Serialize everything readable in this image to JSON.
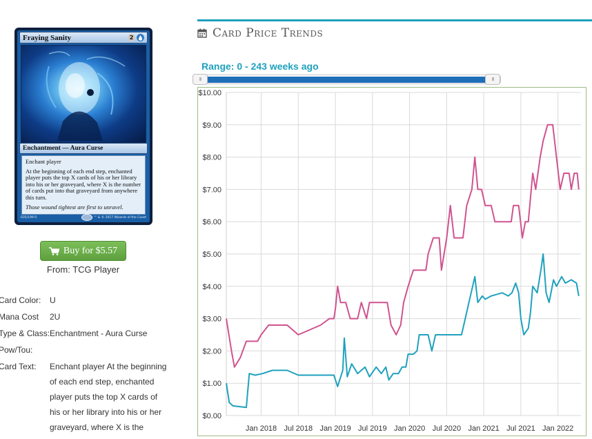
{
  "card": {
    "name": "Fraying Sanity",
    "mana_generic": "2",
    "mana_colored": "U",
    "type_line": "Enchantment — Aura Curse",
    "rules_line1": "Enchant player",
    "rules_line2": "At the beginning of each end step, enchanted player puts the top X cards of his or her library into his or her graveyard, where X is the number of cards put into that graveyard from anywhere this turn.",
    "flavor": "Those wound tightest are first to unravel.",
    "collector": "035/199 R",
    "copyright": "™ & © 2017 Wizards of the Coast"
  },
  "buy": {
    "label": "Buy for $5.57",
    "from": "From: TCG Player"
  },
  "details": {
    "color_label": "Card Color:",
    "color_value": "U",
    "mana_label": "Mana Cost",
    "mana_value": "2U",
    "type_label": "Type & Class:",
    "type_value": "Enchantment - Aura Curse",
    "powtou_label": "Pow/Tou:",
    "text_label": "Card Text:",
    "text_lines": [
      "Enchant player At the beginning",
      "of each end step, enchanted",
      "player puts the top X cards of",
      "his or her library into his or her",
      "graveyard, where X is the"
    ]
  },
  "header": {
    "title": "Card Price Trends",
    "icon": "calendar-icon",
    "range_label": "Range: 0 - 243 weeks ago"
  },
  "slider": {
    "min_weeks": 0,
    "max_weeks": 243,
    "left_handle": "III",
    "right_handle": "III"
  },
  "colors": {
    "accent": "#1ea1bd",
    "button_green": "#6aae49",
    "series_pink": "#d0528f",
    "series_teal": "#1ea1bd"
  },
  "chart_data": {
    "type": "line",
    "ylim": [
      0,
      10
    ],
    "y_ticks": [
      "$0.00",
      "$1.00",
      "$2.00",
      "$3.00",
      "$4.00",
      "$5.00",
      "$6.00",
      "$7.00",
      "$8.00",
      "$9.00",
      "$10.00"
    ],
    "x_ticks": [
      "Jan 2018",
      "Jul 2018",
      "Jan 2019",
      "Jul 2019",
      "Jan 2020",
      "Jul 2020",
      "Jan 2021",
      "Jul 2021",
      "Jan 2022"
    ],
    "grid": true,
    "series": [
      {
        "color": "#d0528f",
        "points": [
          [
            2017.53,
            3.0
          ],
          [
            2017.6,
            2.0
          ],
          [
            2017.64,
            1.5
          ],
          [
            2017.72,
            1.8
          ],
          [
            2017.8,
            2.3
          ],
          [
            2017.95,
            2.3
          ],
          [
            2018.0,
            2.5
          ],
          [
            2018.1,
            2.8
          ],
          [
            2018.35,
            2.8
          ],
          [
            2018.5,
            2.5
          ],
          [
            2018.8,
            2.8
          ],
          [
            2018.92,
            3.0
          ],
          [
            2018.98,
            3.0
          ],
          [
            2019.0,
            3.3
          ],
          [
            2019.03,
            4.0
          ],
          [
            2019.07,
            3.5
          ],
          [
            2019.14,
            3.5
          ],
          [
            2019.2,
            3.0
          ],
          [
            2019.3,
            3.0
          ],
          [
            2019.35,
            3.5
          ],
          [
            2019.42,
            3.0
          ],
          [
            2019.46,
            3.5
          ],
          [
            2019.7,
            3.5
          ],
          [
            2019.75,
            2.8
          ],
          [
            2019.82,
            2.5
          ],
          [
            2019.88,
            2.8
          ],
          [
            2019.92,
            3.5
          ],
          [
            2019.98,
            4.0
          ],
          [
            2020.05,
            4.5
          ],
          [
            2020.22,
            4.5
          ],
          [
            2020.25,
            5.0
          ],
          [
            2020.32,
            5.5
          ],
          [
            2020.4,
            5.5
          ],
          [
            2020.43,
            4.5
          ],
          [
            2020.5,
            5.5
          ],
          [
            2020.55,
            6.5
          ],
          [
            2020.6,
            5.5
          ],
          [
            2020.72,
            5.5
          ],
          [
            2020.77,
            6.5
          ],
          [
            2020.84,
            7.0
          ],
          [
            2020.88,
            8.0
          ],
          [
            2020.92,
            7.0
          ],
          [
            2020.97,
            7.0
          ],
          [
            2021.02,
            6.5
          ],
          [
            2021.1,
            6.5
          ],
          [
            2021.15,
            6.0
          ],
          [
            2021.37,
            6.0
          ],
          [
            2021.4,
            6.5
          ],
          [
            2021.47,
            6.5
          ],
          [
            2021.52,
            5.5
          ],
          [
            2021.56,
            6.0
          ],
          [
            2021.6,
            6.0
          ],
          [
            2021.66,
            7.5
          ],
          [
            2021.7,
            7.0
          ],
          [
            2021.76,
            8.0
          ],
          [
            2021.8,
            8.5
          ],
          [
            2021.86,
            9.0
          ],
          [
            2021.93,
            9.0
          ],
          [
            2021.98,
            8.0
          ],
          [
            2022.03,
            7.0
          ],
          [
            2022.08,
            7.5
          ],
          [
            2022.15,
            7.5
          ],
          [
            2022.18,
            7.0
          ],
          [
            2022.22,
            7.5
          ],
          [
            2022.26,
            7.5
          ],
          [
            2022.28,
            7.0
          ]
        ]
      },
      {
        "color": "#1ea1bd",
        "points": [
          [
            2017.53,
            1.0
          ],
          [
            2017.57,
            0.4
          ],
          [
            2017.62,
            0.3
          ],
          [
            2017.8,
            0.25
          ],
          [
            2017.84,
            1.3
          ],
          [
            2017.92,
            1.25
          ],
          [
            2018.02,
            1.3
          ],
          [
            2018.15,
            1.4
          ],
          [
            2018.35,
            1.4
          ],
          [
            2018.5,
            1.25
          ],
          [
            2018.98,
            1.25
          ],
          [
            2019.03,
            0.9
          ],
          [
            2019.1,
            1.4
          ],
          [
            2019.12,
            2.4
          ],
          [
            2019.16,
            1.2
          ],
          [
            2019.22,
            1.6
          ],
          [
            2019.3,
            1.3
          ],
          [
            2019.4,
            1.5
          ],
          [
            2019.46,
            1.2
          ],
          [
            2019.55,
            1.5
          ],
          [
            2019.62,
            1.3
          ],
          [
            2019.68,
            1.5
          ],
          [
            2019.72,
            1.1
          ],
          [
            2019.78,
            1.3
          ],
          [
            2019.85,
            1.3
          ],
          [
            2019.9,
            1.5
          ],
          [
            2019.95,
            1.5
          ],
          [
            2019.98,
            1.9
          ],
          [
            2020.05,
            1.9
          ],
          [
            2020.1,
            2.0
          ],
          [
            2020.13,
            2.5
          ],
          [
            2020.25,
            2.5
          ],
          [
            2020.3,
            2.0
          ],
          [
            2020.35,
            2.5
          ],
          [
            2020.5,
            2.5
          ],
          [
            2020.55,
            2.5
          ],
          [
            2020.7,
            2.5
          ],
          [
            2020.75,
            3.0
          ],
          [
            2020.8,
            3.5
          ],
          [
            2020.85,
            4.0
          ],
          [
            2020.88,
            4.3
          ],
          [
            2020.92,
            3.5
          ],
          [
            2020.98,
            3.7
          ],
          [
            2021.02,
            3.6
          ],
          [
            2021.1,
            3.7
          ],
          [
            2021.25,
            3.8
          ],
          [
            2021.33,
            3.7
          ],
          [
            2021.38,
            3.8
          ],
          [
            2021.43,
            4.1
          ],
          [
            2021.47,
            3.8
          ],
          [
            2021.5,
            3.0
          ],
          [
            2021.54,
            2.5
          ],
          [
            2021.6,
            2.7
          ],
          [
            2021.63,
            3.2
          ],
          [
            2021.66,
            4.0
          ],
          [
            2021.72,
            3.8
          ],
          [
            2021.77,
            4.5
          ],
          [
            2021.8,
            5.0
          ],
          [
            2021.84,
            3.8
          ],
          [
            2021.88,
            3.5
          ],
          [
            2021.94,
            4.2
          ],
          [
            2021.98,
            4.0
          ],
          [
            2022.05,
            4.3
          ],
          [
            2022.1,
            4.1
          ],
          [
            2022.18,
            4.2
          ],
          [
            2022.25,
            4.1
          ],
          [
            2022.28,
            3.7
          ]
        ]
      }
    ]
  }
}
